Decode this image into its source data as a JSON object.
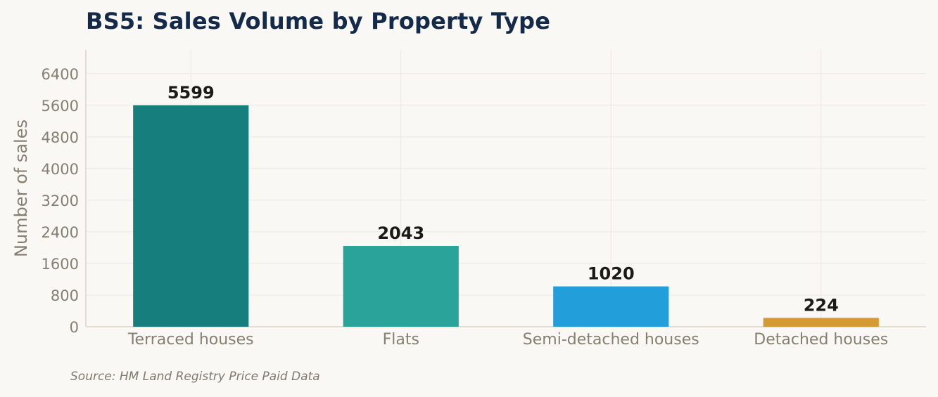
{
  "title": "BS5: Sales Volume by Property Type",
  "source": "Source: HM Land Registry Price Paid Data",
  "chart_data": {
    "type": "bar",
    "title": "BS5: Sales Volume by Property Type",
    "xlabel": "",
    "ylabel": "Number of sales",
    "categories": [
      "Terraced houses",
      "Flats",
      "Semi-detached houses",
      "Detached houses"
    ],
    "values": [
      5599,
      2043,
      1020,
      224
    ],
    "bar_colors": [
      "#167f7e",
      "#2aa39a",
      "#229fda",
      "#d59a33"
    ],
    "value_labels": [
      "5599",
      "2043",
      "1020",
      "224"
    ],
    "yticks": [
      0,
      800,
      1600,
      2400,
      3200,
      4000,
      4800,
      5600,
      6400
    ],
    "ylim": [
      0,
      7000
    ],
    "grid": true,
    "legend": "none"
  }
}
